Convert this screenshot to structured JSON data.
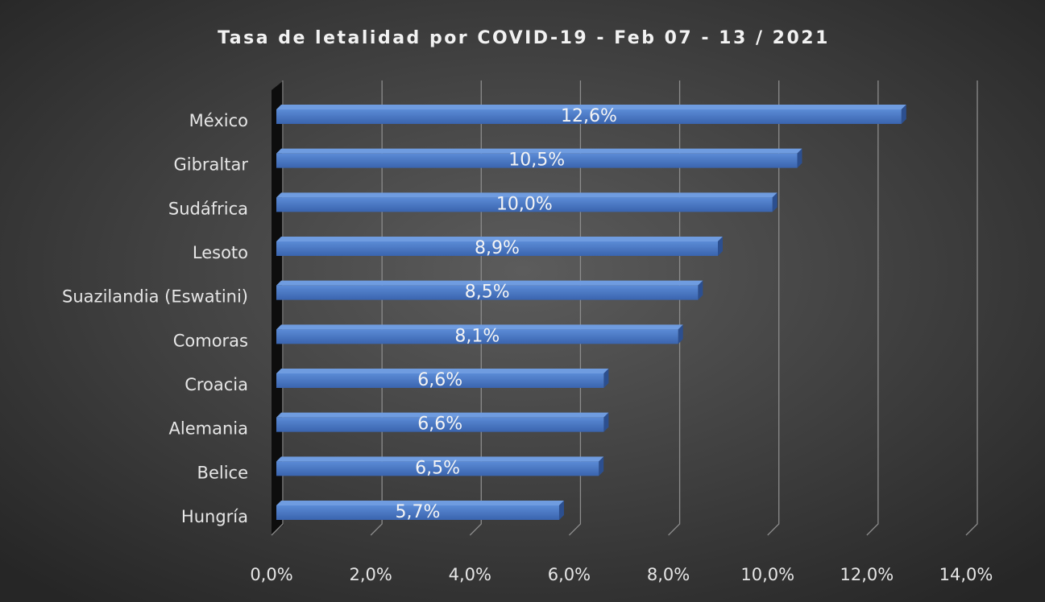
{
  "chart_data": {
    "type": "bar",
    "orientation": "horizontal",
    "title": "Tasa de letalidad por COVID-19 - Feb 07 - 13 / 2021",
    "categories": [
      "México",
      "Gibraltar",
      "Sudáfrica",
      "Lesoto",
      "Suazilandia (Eswatini)",
      "Comoras",
      "Croacia",
      "Alemania",
      "Belice",
      "Hungría"
    ],
    "values": [
      12.6,
      10.5,
      10.0,
      8.9,
      8.5,
      8.1,
      6.6,
      6.6,
      6.5,
      5.7
    ],
    "value_labels": [
      "12,6%",
      "10,5%",
      "10,0%",
      "8,9%",
      "8,5%",
      "8,1%",
      "6,6%",
      "6,6%",
      "6,5%",
      "5,7%"
    ],
    "color": "#4472c4",
    "xlim": [
      0,
      14
    ],
    "xticks": [
      {
        "value": 0,
        "label": "0,0%"
      },
      {
        "value": 2,
        "label": "2,0%"
      },
      {
        "value": 4,
        "label": "4,0%"
      },
      {
        "value": 6,
        "label": "6,0%"
      },
      {
        "value": 8,
        "label": "8,0%"
      },
      {
        "value": 10,
        "label": "10,0%"
      },
      {
        "value": 12,
        "label": "12,0%"
      },
      {
        "value": 14,
        "label": "14,0%"
      }
    ],
    "grid": true
  }
}
